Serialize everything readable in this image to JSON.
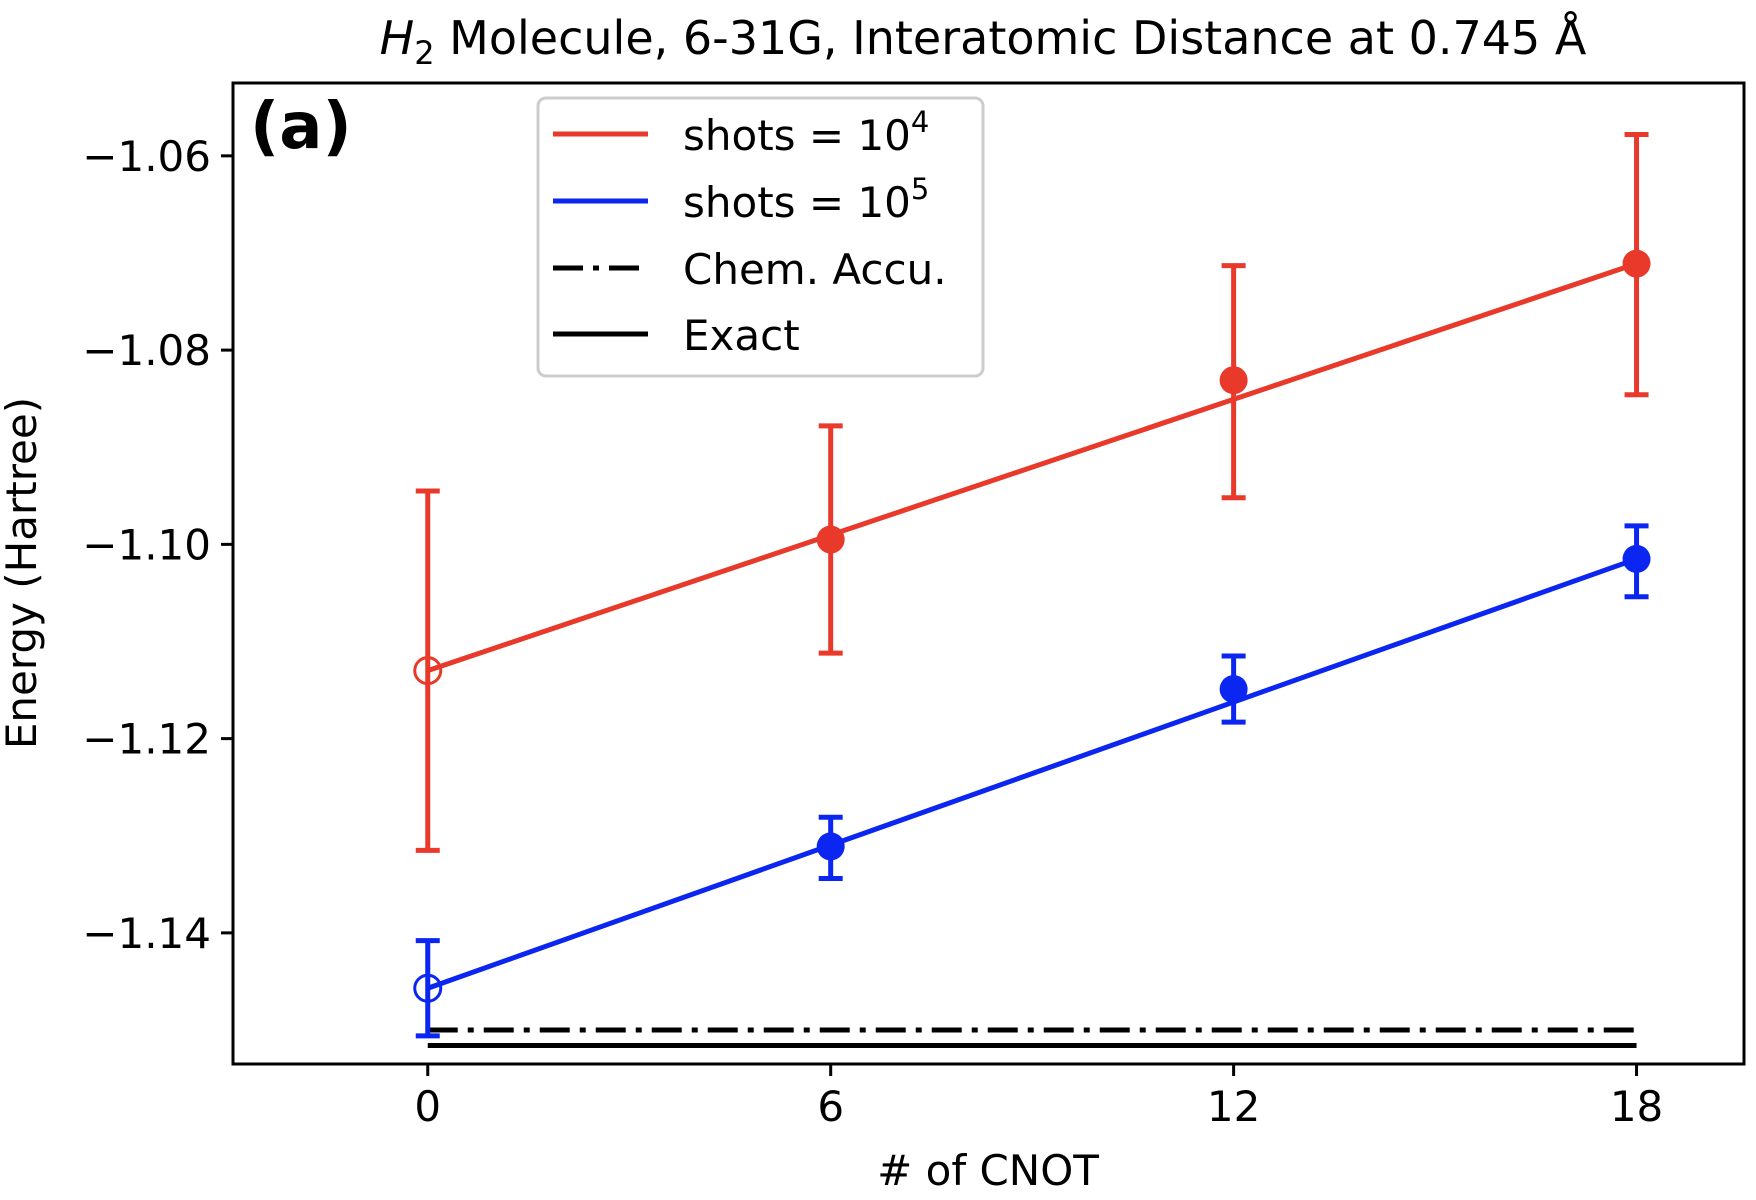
{
  "chart_data": {
    "type": "line",
    "panel_label": "(a)",
    "title": {
      "molecule_symbol": "H",
      "molecule_subscript": "2",
      "rest": " Molecule, 6-31G, Interatomic Distance at 0.745 Å"
    },
    "xlabel": "# of CNOT",
    "ylabel": "Energy (Hartree)",
    "xlim": [
      -2.9,
      19.6
    ],
    "ylim": [
      -1.1535,
      -1.0525
    ],
    "x_ticks": [
      0,
      6,
      12,
      18
    ],
    "x_tick_labels": [
      "0",
      "6",
      "12",
      "18"
    ],
    "y_ticks": [
      -1.06,
      -1.08,
      -1.1,
      -1.12,
      -1.14
    ],
    "y_tick_labels": [
      "−1.06",
      "−1.08",
      "−1.10",
      "−1.12",
      "−1.14"
    ],
    "grid": false,
    "legend_placement": "upper-center",
    "series": [
      {
        "name": "shots = 10^4",
        "legend_base": "shots = 10",
        "legend_exp": "4",
        "color": "#e8392a",
        "points": [
          {
            "x": 0,
            "y": -1.113,
            "err_low": -1.1315,
            "err_high": -1.0945,
            "hollow": true
          },
          {
            "x": 6,
            "y": -1.0995,
            "err_low": -1.1112,
            "err_high": -1.0878,
            "hollow": false
          },
          {
            "x": 12,
            "y": -1.0831,
            "err_low": -1.0952,
            "err_high": -1.0713,
            "hollow": false
          },
          {
            "x": 18,
            "y": -1.0711,
            "err_low": -1.0846,
            "err_high": -1.0578,
            "hollow": false
          }
        ],
        "fit": {
          "x": [
            0,
            18
          ],
          "y": [
            -1.113,
            -1.0711
          ]
        }
      },
      {
        "name": "shots = 10^5",
        "legend_base": "shots = 10",
        "legend_exp": "5",
        "color": "#0a26f0",
        "points": [
          {
            "x": 0,
            "y": -1.1457,
            "err_low": -1.1506,
            "err_high": -1.1408,
            "hollow": true
          },
          {
            "x": 6,
            "y": -1.1311,
            "err_low": -1.1344,
            "err_high": -1.1281,
            "hollow": false
          },
          {
            "x": 12,
            "y": -1.1149,
            "err_low": -1.1183,
            "err_high": -1.1115,
            "hollow": false
          },
          {
            "x": 18,
            "y": -1.1015,
            "err_low": -1.1054,
            "err_high": -1.0981,
            "hollow": false
          }
        ],
        "fit": {
          "x": [
            0,
            18
          ],
          "y": [
            -1.1457,
            -1.1015
          ]
        }
      }
    ],
    "reference_lines": [
      {
        "name": "Chem. Accu.",
        "style": "dashdot",
        "color": "#000000",
        "x": [
          0,
          18
        ],
        "y": -1.15
      },
      {
        "name": "Exact",
        "style": "solid",
        "color": "#000000",
        "x": [
          0,
          18
        ],
        "y": -1.1516
      }
    ]
  }
}
